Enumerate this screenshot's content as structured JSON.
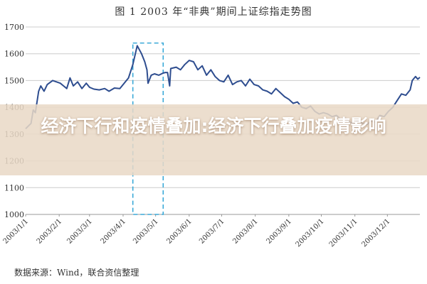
{
  "chart_data": {
    "type": "line",
    "title": "图 1    2003 年“非典”期间上证综指走势图",
    "ylim": [
      1000,
      1700
    ],
    "yticks": [
      "1700",
      "1600",
      "1500",
      "1400",
      "1300",
      "1200",
      "1100",
      "1000"
    ],
    "xticks": [
      "2003/1/1",
      "2003/2/1",
      "2003/3/1",
      "2003/4/1",
      "2003/5/1",
      "2003/6/1",
      "2003/7/1",
      "2003/8/1",
      "2003/9/1",
      "2003/10/1",
      "2003/11/1",
      "2003/12/1"
    ],
    "grid": true,
    "line_color": "#2e4d8f",
    "highlight": {
      "x_start": "2003/4/10",
      "x_end": "2003/5/8",
      "style": "dashed",
      "color": "#3aa9d8"
    },
    "series": [
      {
        "values": [
          [
            "2003/1/1",
            1320
          ],
          [
            "2003/1/6",
            1340
          ],
          [
            "2003/1/8",
            1390
          ],
          [
            "2003/1/10",
            1380
          ],
          [
            "2003/1/13",
            1460
          ],
          [
            "2003/1/15",
            1480
          ],
          [
            "2003/1/18",
            1460
          ],
          [
            "2003/1/21",
            1485
          ],
          [
            "2003/1/26",
            1500
          ],
          [
            "2003/2/2",
            1490
          ],
          [
            "2003/2/5",
            1480
          ],
          [
            "2003/2/8",
            1470
          ],
          [
            "2003/2/11",
            1510
          ],
          [
            "2003/2/14",
            1480
          ],
          [
            "2003/2/18",
            1495
          ],
          [
            "2003/2/22",
            1470
          ],
          [
            "2003/2/26",
            1490
          ],
          [
            "2003/3/1",
            1475
          ],
          [
            "2003/3/5",
            1468
          ],
          [
            "2003/3/10",
            1465
          ],
          [
            "2003/3/15",
            1470
          ],
          [
            "2003/3/19",
            1460
          ],
          [
            "2003/3/24",
            1472
          ],
          [
            "2003/3/29",
            1470
          ],
          [
            "2003/4/2",
            1490
          ],
          [
            "2003/4/6",
            1510
          ],
          [
            "2003/4/10",
            1560
          ],
          [
            "2003/4/14",
            1630
          ],
          [
            "2003/4/18",
            1600
          ],
          [
            "2003/4/21",
            1570
          ],
          [
            "2003/4/23",
            1540
          ],
          [
            "2003/4/24",
            1490
          ],
          [
            "2003/4/27",
            1520
          ],
          [
            "2003/4/30",
            1525
          ],
          [
            "2003/5/4",
            1520
          ],
          [
            "2003/5/8",
            1528
          ],
          [
            "2003/5/10",
            1530
          ],
          [
            "2003/5/12",
            1530
          ],
          [
            "2003/5/14",
            1480
          ],
          [
            "2003/5/15",
            1545
          ],
          [
            "2003/5/20",
            1550
          ],
          [
            "2003/5/24",
            1540
          ],
          [
            "2003/5/28",
            1560
          ],
          [
            "2003/6/1",
            1575
          ],
          [
            "2003/6/5",
            1570
          ],
          [
            "2003/6/9",
            1540
          ],
          [
            "2003/6/13",
            1555
          ],
          [
            "2003/6/17",
            1520
          ],
          [
            "2003/6/21",
            1540
          ],
          [
            "2003/6/25",
            1515
          ],
          [
            "2003/6/29",
            1500
          ],
          [
            "2003/7/3",
            1495
          ],
          [
            "2003/7/7",
            1520
          ],
          [
            "2003/7/11",
            1485
          ],
          [
            "2003/7/15",
            1495
          ],
          [
            "2003/7/19",
            1500
          ],
          [
            "2003/7/23",
            1480
          ],
          [
            "2003/7/27",
            1505
          ],
          [
            "2003/7/31",
            1485
          ],
          [
            "2003/8/4",
            1480
          ],
          [
            "2003/8/8",
            1465
          ],
          [
            "2003/8/12",
            1460
          ],
          [
            "2003/8/16",
            1450
          ],
          [
            "2003/8/20",
            1470
          ],
          [
            "2003/8/24",
            1455
          ],
          [
            "2003/8/28",
            1440
          ],
          [
            "2003/9/1",
            1430
          ],
          [
            "2003/9/5",
            1415
          ],
          [
            "2003/9/9",
            1420
          ],
          [
            "2003/9/13",
            1400
          ],
          [
            "2003/9/17",
            1395
          ],
          [
            "2003/9/21",
            1405
          ],
          [
            "2003/9/25",
            1385
          ],
          [
            "2003/9/29",
            1375
          ],
          [
            "2003/10/3",
            1380
          ],
          [
            "2003/10/7",
            1375
          ],
          [
            "2003/10/11",
            1365
          ],
          [
            "2003/10/15",
            1370
          ],
          [
            "2003/10/19",
            1355
          ],
          [
            "2003/10/23",
            1360
          ],
          [
            "2003/10/27",
            1345
          ],
          [
            "2003/10/31",
            1340
          ],
          [
            "2003/11/4",
            1350
          ],
          [
            "2003/11/8",
            1340
          ],
          [
            "2003/11/12",
            1335
          ],
          [
            "2003/11/16",
            1350
          ],
          [
            "2003/11/20",
            1345
          ],
          [
            "2003/11/24",
            1370
          ],
          [
            "2003/11/28",
            1365
          ],
          [
            "2003/12/2",
            1385
          ],
          [
            "2003/12/6",
            1400
          ],
          [
            "2003/12/10",
            1425
          ],
          [
            "2003/12/14",
            1450
          ],
          [
            "2003/12/18",
            1445
          ],
          [
            "2003/12/22",
            1465
          ],
          [
            "2003/12/24",
            1500
          ],
          [
            "2003/12/27",
            1515
          ],
          [
            "2003/12/29",
            1505
          ],
          [
            "2003/12/31",
            1512
          ]
        ]
      }
    ]
  },
  "banner": {
    "text": "经济下行和疫情叠加:经济下行叠加疫情影响"
  },
  "source": {
    "text": "数据来源：Wind，联合资信整理"
  },
  "colors": {
    "banner_bg": "#e9d8c6",
    "banner_text": "#ffffff",
    "grid": "#cccccc"
  }
}
